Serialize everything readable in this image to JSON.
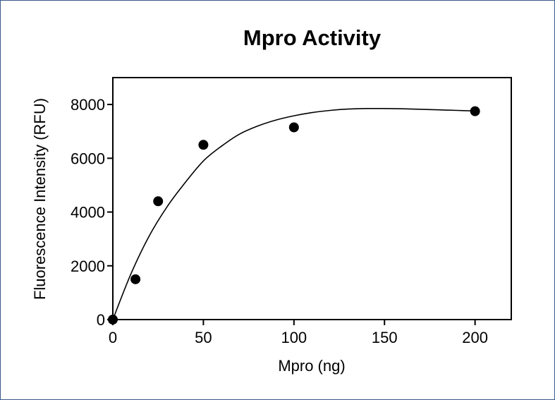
{
  "chart_data": {
    "type": "scatter",
    "title": "Mpro Activity",
    "xlabel": "Mpro (ng)",
    "ylabel": "Fluorescence Intensity (RFU)",
    "xlim": [
      0,
      220
    ],
    "ylim": [
      0,
      9000
    ],
    "xticks": [
      0,
      50,
      100,
      150,
      200
    ],
    "yticks": [
      0,
      2000,
      4000,
      6000,
      8000
    ],
    "xtick_labels": [
      "0",
      "50",
      "100",
      "150",
      "200"
    ],
    "ytick_labels": [
      "0",
      "2000",
      "4000",
      "6000",
      "8000"
    ],
    "grid": false,
    "series": [
      {
        "x": [
          0,
          12.5,
          25,
          50,
          100,
          200
        ],
        "y": [
          0,
          1500,
          4400,
          6500,
          7150,
          7750
        ]
      }
    ],
    "fit_curve": {
      "x": [
        0,
        10,
        20,
        30,
        40,
        50,
        60,
        70,
        80,
        90,
        100,
        110,
        120,
        130,
        140,
        150,
        160,
        170,
        180,
        190,
        200
      ],
      "y": [
        0,
        1700,
        3100,
        4200,
        5100,
        5900,
        6450,
        6900,
        7200,
        7420,
        7580,
        7700,
        7780,
        7830,
        7850,
        7850,
        7840,
        7820,
        7800,
        7780,
        7760
      ]
    }
  }
}
